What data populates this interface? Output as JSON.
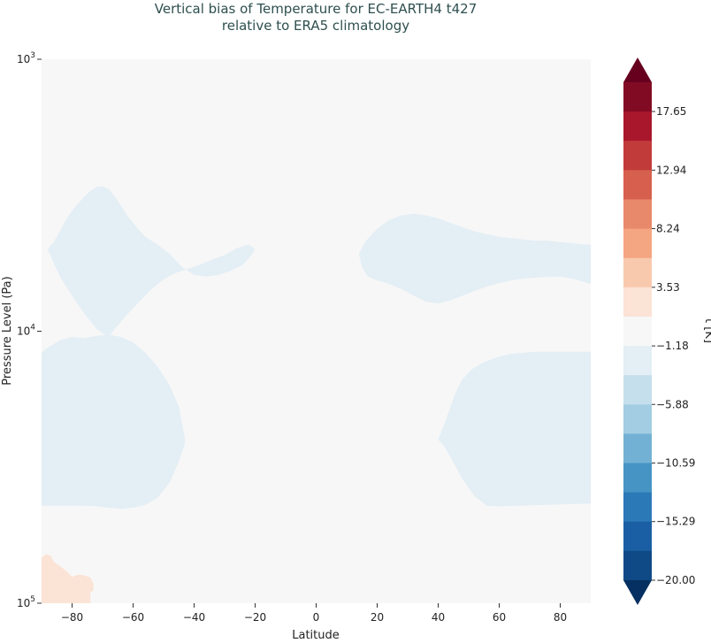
{
  "chart_data": {
    "type": "heatmap",
    "plot_kind": "filled contour (latitude vs pressure)",
    "title_line1": "Vertical bias of Temperature for EC-EARTH4 t427",
    "title_line2": "relative to ERA5 climatology",
    "xlabel": "Latitude",
    "ylabel": "Pressure Level (Pa)",
    "xlim": [
      -90,
      90
    ],
    "ylim": [
      100000,
      1000
    ],
    "yscale": "log",
    "x_ticks": [
      -80,
      -60,
      -40,
      -20,
      0,
      20,
      40,
      60,
      80
    ],
    "x_tick_labels": [
      "−80",
      "−60",
      "−40",
      "−20",
      "0",
      "20",
      "40",
      "60",
      "80"
    ],
    "y_ticks": [
      {
        "value": 1000,
        "base": "10",
        "exp": "3"
      },
      {
        "value": 10000,
        "base": "10",
        "exp": "4"
      },
      {
        "value": 100000,
        "base": "10",
        "exp": "5"
      }
    ],
    "colorbar": {
      "label": "t [K]",
      "min": -20.0,
      "max": 20.0,
      "extend": "both",
      "tick_labels": [
        "17.65",
        "12.94",
        "8.24",
        "3.53",
        "−1.18",
        "−5.88",
        "−10.59",
        "−15.29",
        "−20.00"
      ],
      "tick_values": [
        17.65,
        12.94,
        8.24,
        3.53,
        -1.18,
        -5.88,
        -10.59,
        -15.29,
        -20.0
      ],
      "colors_top_to_bottom": [
        "#67001f",
        "#820b24",
        "#a8172c",
        "#c23b3b",
        "#d6604d",
        "#e8896b",
        "#f4a582",
        "#f9c9ad",
        "#fbe3d5",
        "#f7f7f7",
        "#e3eef5",
        "#c6dfed",
        "#a3cde3",
        "#73b1d4",
        "#4694c4",
        "#2c79b7",
        "#1a5fa3",
        "#0f4a86",
        "#053061"
      ]
    },
    "regions": [
      {
        "name": "upper-south-negative",
        "level": "-1.18 to -5.88",
        "outline": [
          [
            -88,
            5000
          ],
          [
            -86,
            4700
          ],
          [
            -84,
            4300
          ],
          [
            -82,
            3900
          ],
          [
            -80,
            3600
          ],
          [
            -78,
            3400
          ],
          [
            -76,
            3200
          ],
          [
            -74,
            3050
          ],
          [
            -72,
            2950
          ],
          [
            -70,
            2930
          ],
          [
            -68,
            3000
          ],
          [
            -66,
            3200
          ],
          [
            -64,
            3450
          ],
          [
            -62,
            3750
          ],
          [
            -60,
            4000
          ],
          [
            -58,
            4250
          ],
          [
            -56,
            4500
          ],
          [
            -52,
            4800
          ],
          [
            -48,
            5200
          ],
          [
            -44,
            5800
          ],
          [
            -40,
            6200
          ],
          [
            -36,
            6300
          ],
          [
            -32,
            6200
          ],
          [
            -28,
            6000
          ],
          [
            -24,
            5700
          ],
          [
            -21,
            5200
          ],
          [
            -20,
            5000
          ],
          [
            -22,
            4800
          ],
          [
            -26,
            4950
          ],
          [
            -30,
            5250
          ],
          [
            -34,
            5450
          ],
          [
            -38,
            5700
          ],
          [
            -42,
            5900
          ],
          [
            -46,
            6100
          ],
          [
            -50,
            6450
          ],
          [
            -54,
            7000
          ],
          [
            -58,
            7800
          ],
          [
            -62,
            8700
          ],
          [
            -66,
            9800
          ],
          [
            -68,
            10500
          ],
          [
            -72,
            9800
          ],
          [
            -76,
            8600
          ],
          [
            -80,
            7400
          ],
          [
            -84,
            6300
          ],
          [
            -86,
            5600
          ]
        ]
      },
      {
        "name": "lower-south-negative",
        "level": "-1.18 to -5.88",
        "outline": [
          [
            -90,
            12000
          ],
          [
            -88,
            11500
          ],
          [
            -84,
            10800
          ],
          [
            -80,
            10500
          ],
          [
            -76,
            10600
          ],
          [
            -72,
            10400
          ],
          [
            -68,
            10300
          ],
          [
            -64,
            10500
          ],
          [
            -60,
            11000
          ],
          [
            -56,
            12000
          ],
          [
            -52,
            13500
          ],
          [
            -48,
            15800
          ],
          [
            -45,
            19000
          ],
          [
            -43,
            25000
          ],
          [
            -43,
            25800
          ],
          [
            -45,
            30000
          ],
          [
            -48,
            36000
          ],
          [
            -52,
            41000
          ],
          [
            -56,
            43500
          ],
          [
            -60,
            44500
          ],
          [
            -64,
            45000
          ],
          [
            -68,
            44500
          ],
          [
            -72,
            44000
          ],
          [
            -76,
            43800
          ],
          [
            -80,
            43800
          ],
          [
            -84,
            43800
          ],
          [
            -88,
            43800
          ],
          [
            -90,
            43800
          ]
        ]
      },
      {
        "name": "upper-north-negative",
        "level": "-1.18 to -5.88",
        "outline": [
          [
            14,
            5200
          ],
          [
            16,
            4700
          ],
          [
            20,
            4200
          ],
          [
            24,
            3900
          ],
          [
            28,
            3750
          ],
          [
            32,
            3700
          ],
          [
            36,
            3750
          ],
          [
            40,
            3850
          ],
          [
            44,
            4000
          ],
          [
            48,
            4150
          ],
          [
            52,
            4300
          ],
          [
            56,
            4400
          ],
          [
            60,
            4500
          ],
          [
            64,
            4550
          ],
          [
            68,
            4600
          ],
          [
            72,
            4650
          ],
          [
            76,
            4650
          ],
          [
            80,
            4700
          ],
          [
            84,
            4750
          ],
          [
            88,
            4800
          ],
          [
            90,
            4800
          ],
          [
            90,
            6700
          ],
          [
            88,
            6600
          ],
          [
            84,
            6400
          ],
          [
            80,
            6300
          ],
          [
            76,
            6300
          ],
          [
            72,
            6350
          ],
          [
            68,
            6400
          ],
          [
            64,
            6500
          ],
          [
            60,
            6650
          ],
          [
            56,
            6850
          ],
          [
            52,
            7100
          ],
          [
            48,
            7400
          ],
          [
            44,
            7700
          ],
          [
            40,
            7900
          ],
          [
            36,
            7800
          ],
          [
            32,
            7400
          ],
          [
            28,
            7000
          ],
          [
            24,
            6700
          ],
          [
            20,
            6500
          ],
          [
            17,
            6300
          ],
          [
            15,
            5800
          ]
        ]
      },
      {
        "name": "lower-north-negative",
        "level": "-1.18 to -5.88",
        "outline": [
          [
            40,
            25000
          ],
          [
            42,
            22000
          ],
          [
            44,
            19000
          ],
          [
            46,
            16500
          ],
          [
            48,
            15000
          ],
          [
            51,
            13800
          ],
          [
            55,
            13000
          ],
          [
            60,
            12400
          ],
          [
            64,
            12100
          ],
          [
            68,
            12000
          ],
          [
            72,
            11900
          ],
          [
            76,
            11900
          ],
          [
            80,
            11900
          ],
          [
            84,
            11900
          ],
          [
            88,
            11900
          ],
          [
            90,
            11900
          ],
          [
            90,
            43000
          ],
          [
            84,
            43200
          ],
          [
            78,
            43400
          ],
          [
            72,
            43600
          ],
          [
            66,
            43800
          ],
          [
            60,
            44000
          ],
          [
            56,
            43800
          ],
          [
            52,
            40500
          ],
          [
            48,
            35000
          ],
          [
            44,
            29000
          ],
          [
            42,
            26500
          ]
        ]
      },
      {
        "name": "south-925-streak",
        "level": "-1.18 to -5.88",
        "outline": [
          [
            -90,
            25000
          ],
          [
            -84,
            24500
          ],
          [
            -78,
            24300
          ],
          [
            -74,
            24600
          ],
          [
            -72,
            25000
          ],
          [
            -74,
            25400
          ],
          [
            -78,
            25700
          ],
          [
            -84,
            25500
          ]
        ]
      },
      {
        "name": "north-925-streak",
        "level": "-1.18 to -5.88",
        "outline": [
          [
            79,
            25000
          ],
          [
            83,
            24200
          ],
          [
            87,
            23800
          ],
          [
            90,
            23700
          ],
          [
            90,
            26300
          ],
          [
            87,
            26200
          ],
          [
            83,
            25800
          ]
        ]
      },
      {
        "name": "antarctic-surface-positive",
        "level": "-1.18 to 3.53",
        "outline": [
          [
            -90,
            68000
          ],
          [
            -88.5,
            66000
          ],
          [
            -87,
            67000
          ],
          [
            -86,
            70500
          ],
          [
            -84,
            73000
          ],
          [
            -82,
            76000
          ],
          [
            -80,
            80000
          ],
          [
            -78,
            78500
          ],
          [
            -76,
            79000
          ],
          [
            -74,
            80500
          ],
          [
            -73,
            85000
          ],
          [
            -73,
            90000
          ],
          [
            -74,
            91000
          ],
          [
            -74,
            100000
          ],
          [
            -90,
            100000
          ]
        ]
      }
    ]
  }
}
